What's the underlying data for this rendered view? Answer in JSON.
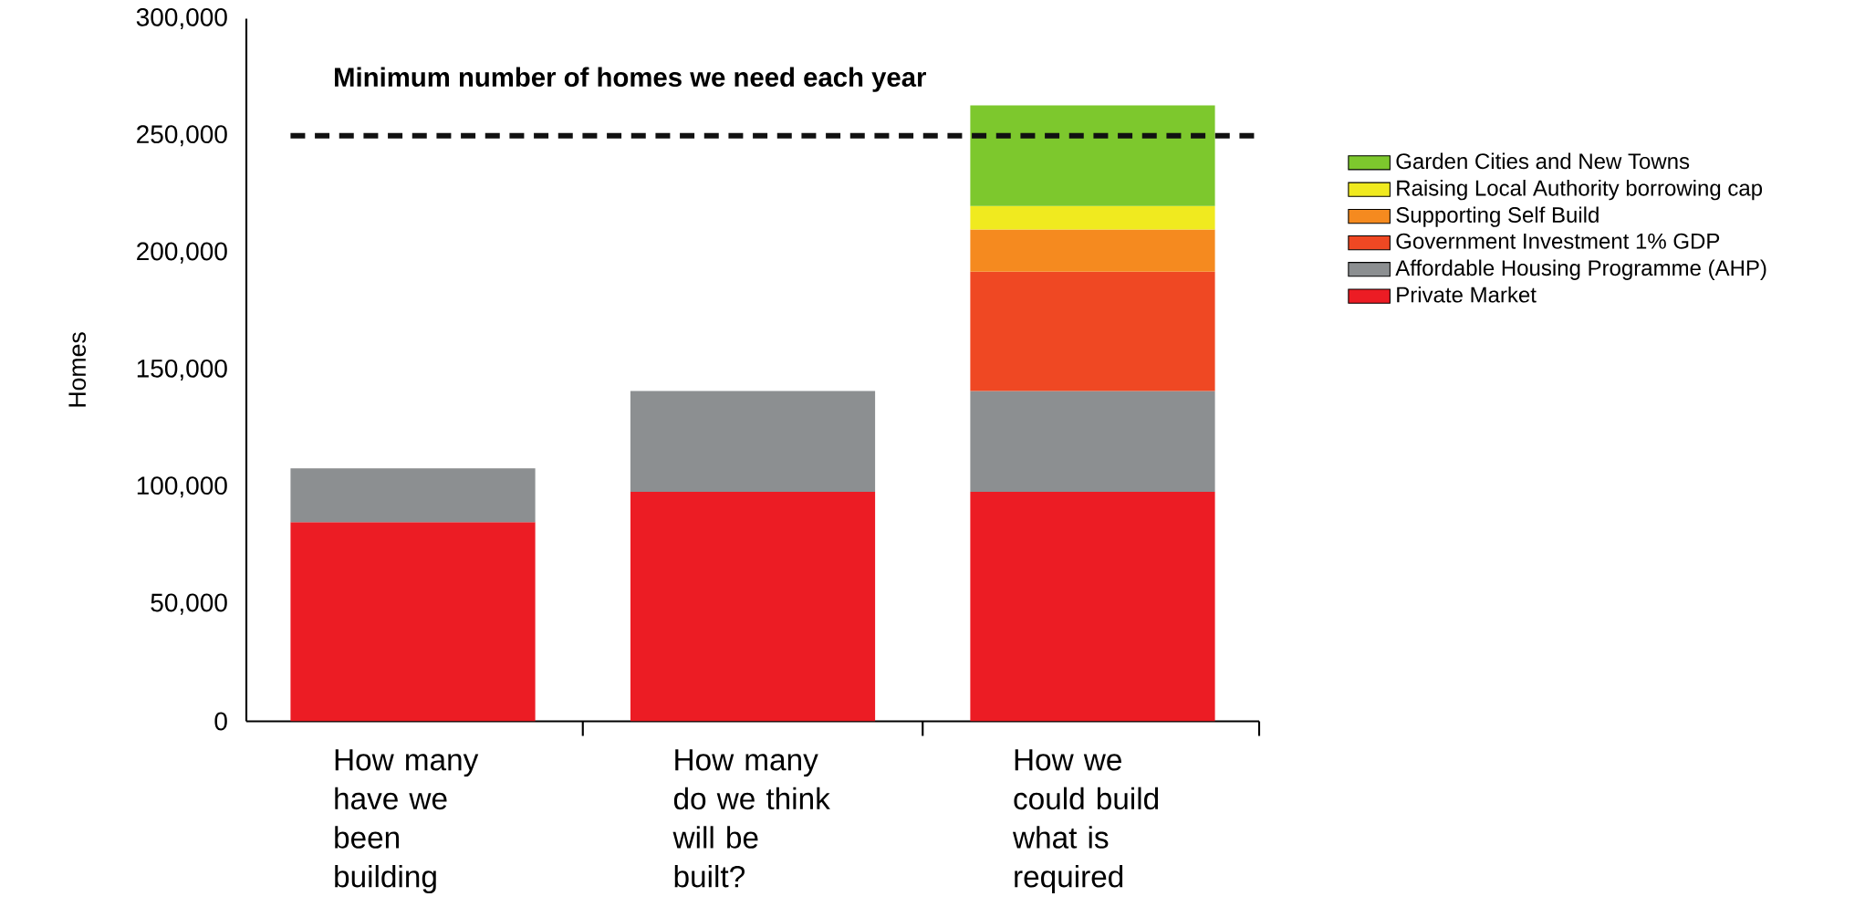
{
  "chart_data": {
    "type": "bar",
    "stacked": true,
    "ylabel": "Homes",
    "categories": [
      "How many have we been building",
      "How many do we think will be built?",
      "How we could build what is required"
    ],
    "series": [
      {
        "name": "Private Market",
        "color": "#ec1c24",
        "values": [
          85000,
          98000,
          98000
        ]
      },
      {
        "name": "Affordable Housing Programme (AHP)",
        "color": "#8c8f91",
        "values": [
          23000,
          43000,
          43000
        ]
      },
      {
        "name": "Government Investment 1% GDP",
        "color": "#ef4823",
        "values": [
          null,
          null,
          51000
        ]
      },
      {
        "name": "Supporting Self Build",
        "color": "#f58a1f",
        "values": [
          null,
          null,
          18000
        ]
      },
      {
        "name": "Raising Local Authority borrowing cap",
        "color": "#f0ea1f",
        "values": [
          null,
          null,
          10000
        ]
      },
      {
        "name": "Garden Cities and New Towns",
        "color": "#7dc82d",
        "values": [
          null,
          null,
          43000
        ]
      }
    ],
    "ylim": [
      0,
      300000
    ],
    "yticks": [
      {
        "value": 0,
        "label": "0"
      },
      {
        "value": 50000,
        "label": "50,000"
      },
      {
        "value": 100000,
        "label": "100,000"
      },
      {
        "value": 150000,
        "label": "150,000"
      },
      {
        "value": 200000,
        "label": "200,000"
      },
      {
        "value": 250000,
        "label": "250,000"
      },
      {
        "value": 300000,
        "label": "300,000"
      }
    ],
    "ref_lines": [
      {
        "axis": "y",
        "value": 250000,
        "label": "Minimum number of homes we need each year",
        "color": "#111111",
        "line_style": "dashed"
      }
    ],
    "grid": false,
    "legend": "right"
  }
}
